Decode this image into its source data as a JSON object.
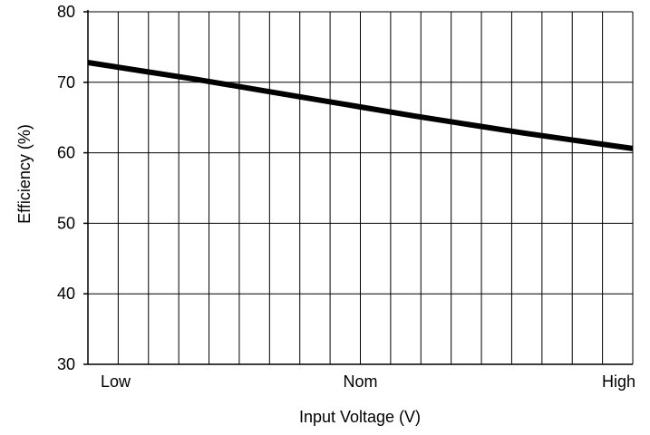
{
  "chart_data": {
    "type": "line",
    "title": "",
    "xlabel": "Input Voltage (V)",
    "ylabel": "Efficiency (%)",
    "x_tick_labels": [
      "Low",
      "Nom",
      "High"
    ],
    "x": [
      0,
      0.5,
      1
    ],
    "xlim": [
      0,
      1
    ],
    "y_ticks": [
      30,
      40,
      50,
      60,
      70,
      80
    ],
    "ylim": [
      30,
      80
    ],
    "grid": true,
    "series": [
      {
        "x": [
          0,
          0.1,
          0.2,
          0.3,
          0.4,
          0.5,
          0.6,
          0.7,
          0.8,
          0.9,
          1.0
        ],
        "values": [
          72.8,
          71.6,
          70.4,
          69.1,
          67.8,
          66.5,
          65.2,
          64.0,
          62.8,
          61.7,
          60.6
        ],
        "color": "#000000"
      }
    ]
  }
}
